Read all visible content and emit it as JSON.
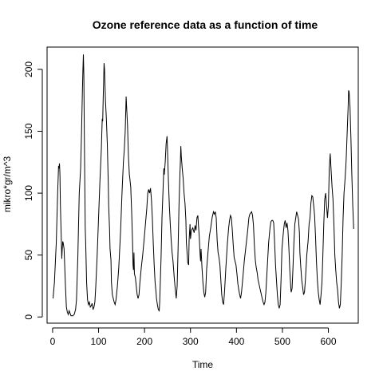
{
  "chart_data": {
    "type": "line",
    "title": "Ozone reference data as a function of time",
    "xlabel": "Time",
    "ylabel": "mikro*gr/m^3",
    "xlim": [
      -12,
      665
    ],
    "ylim": [
      -5,
      218
    ],
    "grid": false,
    "legend": "none",
    "line_color": "#000000",
    "x_ticks": [
      0,
      100,
      200,
      300,
      400,
      500,
      600
    ],
    "y_ticks": [
      0,
      50,
      100,
      150,
      200
    ],
    "x_tick_labels": [
      "0",
      "100",
      "200",
      "300",
      "400",
      "500",
      "600"
    ],
    "y_tick_labels": [
      "0",
      "50",
      "100",
      "150",
      "200"
    ],
    "series": [
      {
        "points": [
          [
            1,
            15
          ],
          [
            4,
            28
          ],
          [
            8,
            60
          ],
          [
            11,
            100
          ],
          [
            13,
            122
          ],
          [
            14,
            120
          ],
          [
            15,
            124
          ],
          [
            16,
            115
          ],
          [
            17,
            90
          ],
          [
            19,
            62
          ],
          [
            20,
            47
          ],
          [
            21,
            55
          ],
          [
            22,
            61
          ],
          [
            23,
            60
          ],
          [
            25,
            55
          ],
          [
            26,
            45
          ],
          [
            28,
            25
          ],
          [
            30,
            8
          ],
          [
            32,
            4
          ],
          [
            34,
            2
          ],
          [
            36,
            5
          ],
          [
            38,
            3
          ],
          [
            40,
            1
          ],
          [
            44,
            1
          ],
          [
            47,
            2
          ],
          [
            50,
            6
          ],
          [
            52,
            14
          ],
          [
            55,
            50
          ],
          [
            58,
            100
          ],
          [
            61,
            120
          ],
          [
            63,
            150
          ],
          [
            65,
            185
          ],
          [
            66,
            200
          ],
          [
            67,
            212
          ],
          [
            68,
            195
          ],
          [
            69,
            150
          ],
          [
            70,
            110
          ],
          [
            71,
            72
          ],
          [
            72,
            60
          ],
          [
            74,
            28
          ],
          [
            76,
            14
          ],
          [
            78,
            10
          ],
          [
            80,
            12
          ],
          [
            82,
            8
          ],
          [
            84,
            9
          ],
          [
            86,
            11
          ],
          [
            88,
            6
          ],
          [
            90,
            8
          ],
          [
            92,
            12
          ],
          [
            94,
            25
          ],
          [
            97,
            50
          ],
          [
            100,
            80
          ],
          [
            103,
            110
          ],
          [
            106,
            135
          ],
          [
            108,
            160
          ],
          [
            109,
            158
          ],
          [
            110,
            175
          ],
          [
            112,
            205
          ],
          [
            113,
            200
          ],
          [
            115,
            175
          ],
          [
            117,
            160
          ],
          [
            119,
            140
          ],
          [
            121,
            110
          ],
          [
            122,
            90
          ],
          [
            124,
            70
          ],
          [
            125,
            55
          ],
          [
            127,
            46
          ],
          [
            128,
            28
          ],
          [
            130,
            18
          ],
          [
            132,
            15
          ],
          [
            134,
            12
          ],
          [
            136,
            10
          ],
          [
            138,
            14
          ],
          [
            141,
            25
          ],
          [
            144,
            40
          ],
          [
            148,
            70
          ],
          [
            151,
            100
          ],
          [
            154,
            125
          ],
          [
            156,
            135
          ],
          [
            158,
            150
          ],
          [
            160,
            178
          ],
          [
            161,
            170
          ],
          [
            163,
            155
          ],
          [
            165,
            130
          ],
          [
            167,
            115
          ],
          [
            168,
            112
          ],
          [
            170,
            105
          ],
          [
            172,
            85
          ],
          [
            174,
            60
          ],
          [
            175,
            42
          ],
          [
            176,
            38
          ],
          [
            177,
            52
          ],
          [
            178,
            35
          ],
          [
            180,
            32
          ],
          [
            182,
            25
          ],
          [
            184,
            18
          ],
          [
            186,
            15
          ],
          [
            188,
            18
          ],
          [
            190,
            28
          ],
          [
            193,
            40
          ],
          [
            196,
            50
          ],
          [
            199,
            62
          ],
          [
            202,
            75
          ],
          [
            205,
            88
          ],
          [
            207,
            100
          ],
          [
            209,
            103
          ],
          [
            211,
            100
          ],
          [
            213,
            104
          ],
          [
            215,
            95
          ],
          [
            217,
            80
          ],
          [
            219,
            60
          ],
          [
            221,
            42
          ],
          [
            223,
            28
          ],
          [
            225,
            20
          ],
          [
            226,
            15
          ],
          [
            228,
            10
          ],
          [
            230,
            6
          ],
          [
            232,
            5
          ],
          [
            233,
            12
          ],
          [
            236,
            48
          ],
          [
            238,
            80
          ],
          [
            240,
            100
          ],
          [
            242,
            120
          ],
          [
            243,
            115
          ],
          [
            245,
            125
          ],
          [
            247,
            140
          ],
          [
            249,
            146
          ],
          [
            250,
            135
          ],
          [
            252,
            110
          ],
          [
            254,
            90
          ],
          [
            256,
            75
          ],
          [
            258,
            62
          ],
          [
            260,
            52
          ],
          [
            262,
            45
          ],
          [
            263,
            40
          ],
          [
            265,
            30
          ],
          [
            267,
            22
          ],
          [
            269,
            15
          ],
          [
            271,
            25
          ],
          [
            273,
            55
          ],
          [
            275,
            90
          ],
          [
            277,
            115
          ],
          [
            278,
            125
          ],
          [
            279,
            138
          ],
          [
            280,
            130
          ],
          [
            282,
            120
          ],
          [
            284,
            112
          ],
          [
            286,
            100
          ],
          [
            288,
            92
          ],
          [
            290,
            78
          ],
          [
            291,
            60
          ],
          [
            293,
            50
          ],
          [
            294,
            44
          ],
          [
            296,
            42
          ],
          [
            297,
            62
          ],
          [
            299,
            75
          ],
          [
            300,
            63
          ],
          [
            302,
            70
          ],
          [
            305,
            72
          ],
          [
            308,
            68
          ],
          [
            310,
            74
          ],
          [
            312,
            70
          ],
          [
            314,
            80
          ],
          [
            316,
            82
          ],
          [
            317,
            76
          ],
          [
            319,
            65
          ],
          [
            321,
            50
          ],
          [
            322,
            45
          ],
          [
            323,
            55
          ],
          [
            325,
            40
          ],
          [
            327,
            28
          ],
          [
            329,
            20
          ],
          [
            331,
            16
          ],
          [
            333,
            20
          ],
          [
            335,
            38
          ],
          [
            338,
            52
          ],
          [
            341,
            65
          ],
          [
            344,
            72
          ],
          [
            347,
            80
          ],
          [
            350,
            85
          ],
          [
            352,
            83
          ],
          [
            354,
            85
          ],
          [
            356,
            80
          ],
          [
            358,
            62
          ],
          [
            360,
            52
          ],
          [
            362,
            48
          ],
          [
            364,
            42
          ],
          [
            366,
            30
          ],
          [
            368,
            18
          ],
          [
            370,
            12
          ],
          [
            372,
            10
          ],
          [
            374,
            20
          ],
          [
            377,
            40
          ],
          [
            380,
            58
          ],
          [
            383,
            72
          ],
          [
            385,
            78
          ],
          [
            387,
            82
          ],
          [
            389,
            80
          ],
          [
            391,
            70
          ],
          [
            393,
            58
          ],
          [
            395,
            48
          ],
          [
            397,
            45
          ],
          [
            399,
            42
          ],
          [
            401,
            35
          ],
          [
            403,
            27
          ],
          [
            405,
            22
          ],
          [
            407,
            18
          ],
          [
            409,
            15
          ],
          [
            411,
            20
          ],
          [
            414,
            32
          ],
          [
            417,
            45
          ],
          [
            420,
            55
          ],
          [
            423,
            65
          ],
          [
            425,
            72
          ],
          [
            427,
            80
          ],
          [
            429,
            83
          ],
          [
            431,
            84
          ],
          [
            433,
            85
          ],
          [
            435,
            82
          ],
          [
            437,
            74
          ],
          [
            439,
            58
          ],
          [
            441,
            46
          ],
          [
            443,
            40
          ],
          [
            445,
            36
          ],
          [
            447,
            30
          ],
          [
            450,
            25
          ],
          [
            453,
            20
          ],
          [
            456,
            15
          ],
          [
            458,
            12
          ],
          [
            460,
            10
          ],
          [
            462,
            12
          ],
          [
            464,
            20
          ],
          [
            467,
            40
          ],
          [
            470,
            60
          ],
          [
            473,
            72
          ],
          [
            475,
            77
          ],
          [
            477,
            78
          ],
          [
            479,
            78
          ],
          [
            481,
            76
          ],
          [
            483,
            60
          ],
          [
            485,
            42
          ],
          [
            487,
            30
          ],
          [
            489,
            18
          ],
          [
            491,
            10
          ],
          [
            493,
            7
          ],
          [
            495,
            10
          ],
          [
            497,
            30
          ],
          [
            499,
            55
          ],
          [
            502,
            68
          ],
          [
            504,
            75
          ],
          [
            506,
            78
          ],
          [
            508,
            72
          ],
          [
            510,
            76
          ],
          [
            512,
            70
          ],
          [
            514,
            56
          ],
          [
            516,
            38
          ],
          [
            518,
            25
          ],
          [
            519,
            20
          ],
          [
            521,
            23
          ],
          [
            523,
            40
          ],
          [
            525,
            60
          ],
          [
            527,
            75
          ],
          [
            529,
            80
          ],
          [
            531,
            85
          ],
          [
            533,
            82
          ],
          [
            535,
            79
          ],
          [
            537,
            68
          ],
          [
            538,
            52
          ],
          [
            540,
            40
          ],
          [
            542,
            30
          ],
          [
            544,
            24
          ],
          [
            546,
            18
          ],
          [
            548,
            20
          ],
          [
            550,
            30
          ],
          [
            553,
            50
          ],
          [
            556,
            62
          ],
          [
            558,
            75
          ],
          [
            560,
            80
          ],
          [
            562,
            92
          ],
          [
            564,
            98
          ],
          [
            566,
            97
          ],
          [
            568,
            90
          ],
          [
            570,
            82
          ],
          [
            572,
            65
          ],
          [
            574,
            45
          ],
          [
            576,
            30
          ],
          [
            578,
            20
          ],
          [
            580,
            14
          ],
          [
            582,
            10
          ],
          [
            584,
            18
          ],
          [
            586,
            28
          ],
          [
            588,
            50
          ],
          [
            590,
            75
          ],
          [
            592,
            95
          ],
          [
            594,
            100
          ],
          [
            596,
            90
          ],
          [
            598,
            80
          ],
          [
            600,
            90
          ],
          [
            602,
            120
          ],
          [
            604,
            132
          ],
          [
            606,
            118
          ],
          [
            608,
            105
          ],
          [
            610,
            95
          ],
          [
            612,
            75
          ],
          [
            614,
            50
          ],
          [
            616,
            38
          ],
          [
            618,
            28
          ],
          [
            620,
            22
          ],
          [
            622,
            12
          ],
          [
            624,
            7
          ],
          [
            626,
            10
          ],
          [
            628,
            28
          ],
          [
            630,
            50
          ],
          [
            632,
            80
          ],
          [
            634,
            100
          ],
          [
            636,
            110
          ],
          [
            638,
            122
          ],
          [
            639,
            130
          ],
          [
            641,
            150
          ],
          [
            643,
            170
          ],
          [
            644,
            183
          ],
          [
            645,
            182
          ],
          [
            647,
            170
          ],
          [
            649,
            145
          ],
          [
            651,
            115
          ],
          [
            653,
            90
          ],
          [
            655,
            71
          ]
        ]
      }
    ]
  }
}
